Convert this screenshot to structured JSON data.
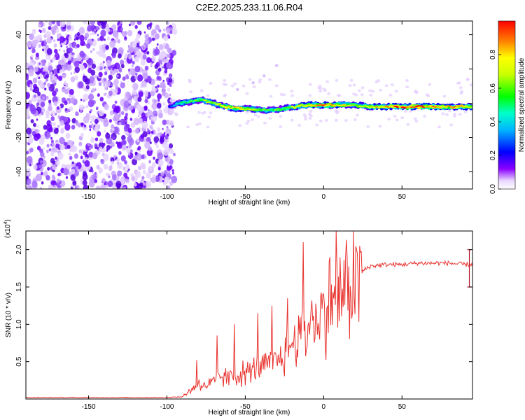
{
  "title": "C2E2.2025.233.11.06.R04",
  "chart_data": [
    {
      "type": "heatmap",
      "xlabel": "Height of straight line (km)",
      "ylabel": "Frequency (Hz)",
      "xlim": [
        -190,
        95
      ],
      "ylim": [
        -50,
        48
      ],
      "xticks": [
        -150,
        -100,
        -50,
        0,
        50
      ],
      "yticks": [
        40,
        20,
        0,
        -20,
        -40
      ],
      "colorbar": {
        "label": "Normalized spectral amplitude",
        "range": [
          0,
          1
        ],
        "ticks": [
          0.0,
          0.2,
          0.4,
          0.6,
          0.8
        ],
        "tick_labels": [
          "0.0",
          "0.2",
          "0.4",
          "0.6",
          "0.8"
        ]
      },
      "noise_region": {
        "x_range": [
          -190,
          -95
        ],
        "amplitude": 0.15
      },
      "signal_trace": {
        "x": [
          -98,
          -92,
          -85,
          -78,
          -70,
          -62,
          -55,
          -48,
          -40,
          -33,
          -25,
          -18,
          -10,
          0,
          10,
          20,
          30,
          40,
          50,
          60,
          70,
          80,
          90,
          95
        ],
        "freq": [
          -2,
          0,
          1,
          2,
          0,
          -2,
          -3,
          -3,
          -4,
          -4,
          -3,
          -2,
          -1,
          -1,
          -1,
          -1,
          -2,
          -2,
          -2,
          -2,
          -2,
          -2,
          -2,
          -2
        ],
        "amplitude": [
          0.25,
          0.45,
          0.55,
          0.6,
          0.65,
          0.75,
          0.8,
          0.7,
          0.6,
          0.55,
          0.6,
          0.7,
          0.8,
          0.85,
          0.8,
          0.7,
          0.75,
          0.85,
          0.95,
          0.95,
          0.9,
          0.85,
          0.8,
          0.7
        ]
      },
      "faint_branch": {
        "x": [
          -55,
          -45,
          -38,
          -30
        ],
        "freq": [
          8,
          12,
          16,
          22
        ]
      }
    },
    {
      "type": "line",
      "xlabel": "Height of straight line (km)",
      "ylabel": "SNR (10 * v/v)",
      "y_multiplier": "(x10",
      "y_multiplier_exp": "4",
      "y_multiplier_close": ")",
      "xlim": [
        -190,
        95
      ],
      "ylim": [
        0,
        2.25
      ],
      "xticks": [
        -150,
        -100,
        -50,
        0,
        50
      ],
      "yticks": [
        0.5,
        1.0,
        1.5,
        2.0
      ],
      "ytick_labels": [
        "0.5",
        "1.0",
        "1.5",
        "2.0"
      ],
      "series": [
        {
          "name": "SNR",
          "color": "#e8332e",
          "x": [
            -190,
            -150,
            -100,
            -90,
            -85,
            -80,
            -75,
            -70,
            -65,
            -60,
            -55,
            -50,
            -45,
            -40,
            -35,
            -30,
            -25,
            -20,
            -15,
            -10,
            -5,
            0,
            5,
            10,
            15,
            20,
            25,
            30,
            40,
            50,
            60,
            70,
            80,
            90,
            95
          ],
          "values": [
            0.02,
            0.02,
            0.02,
            0.03,
            0.12,
            0.2,
            0.18,
            0.22,
            0.3,
            0.28,
            0.32,
            0.35,
            0.38,
            0.42,
            0.45,
            0.5,
            0.62,
            0.75,
            0.85,
            0.95,
            1.05,
            1.15,
            1.3,
            1.4,
            1.5,
            1.62,
            1.72,
            1.78,
            1.8,
            1.8,
            1.82,
            1.82,
            1.82,
            1.8,
            1.8
          ],
          "spikes": [
            {
              "x": -81,
              "y": 0.52
            },
            {
              "x": -68,
              "y": 0.85
            },
            {
              "x": -57,
              "y": 1.0
            },
            {
              "x": -42,
              "y": 1.15
            },
            {
              "x": -33,
              "y": 1.25
            },
            {
              "x": -23,
              "y": 1.35
            },
            {
              "x": -13,
              "y": 2.1
            },
            {
              "x": -8,
              "y": 1.2
            },
            {
              "x": 4,
              "y": 1.9
            },
            {
              "x": 8,
              "y": 2.25
            },
            {
              "x": 14,
              "y": 1.9
            }
          ]
        }
      ],
      "errorbar": {
        "x": 93,
        "y_low": 1.5,
        "y_high": 2.0
      }
    }
  ]
}
